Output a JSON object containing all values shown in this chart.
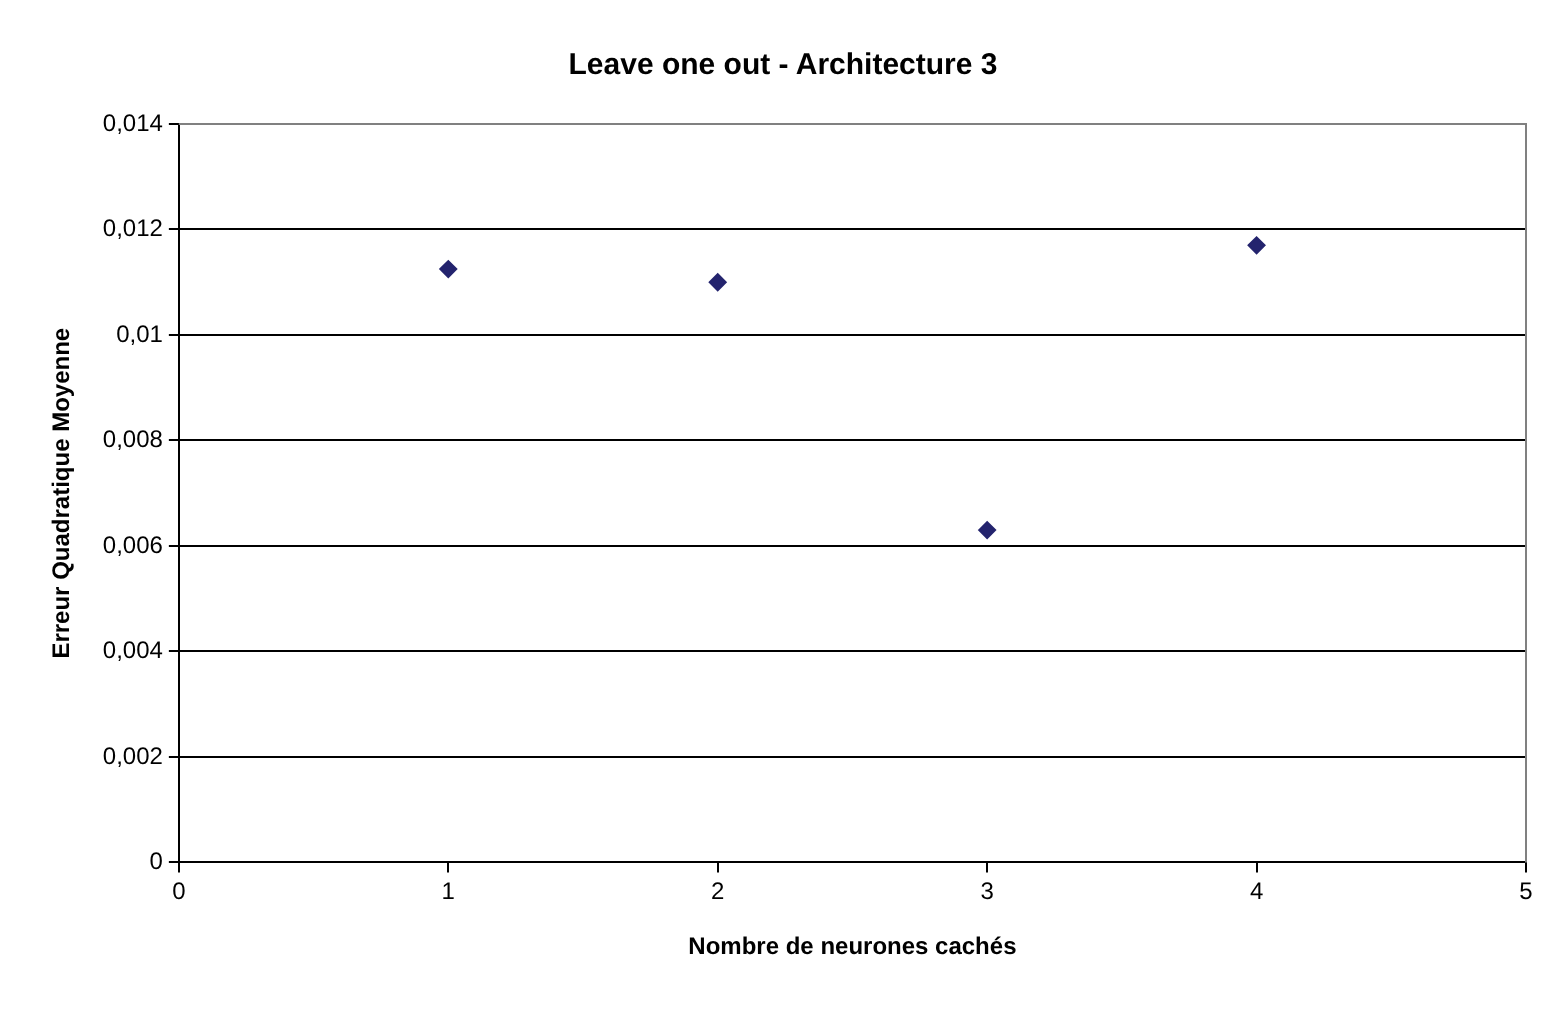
{
  "chart_data": {
    "type": "scatter",
    "title": "Leave one out - Architecture 3",
    "xlabel": "Nombre de neurones cachés",
    "ylabel": "Erreur Quadratique Moyenne",
    "x": [
      1,
      2,
      3,
      4
    ],
    "series": [
      {
        "color": "#24246e",
        "values": [
          0.01125,
          0.011,
          0.0063,
          0.0117
        ]
      }
    ],
    "xlim": [
      0,
      5
    ],
    "xticks": [
      0,
      1,
      2,
      3,
      4,
      5
    ],
    "ylim": [
      0,
      0.014
    ],
    "yticks": [
      {
        "value": 0,
        "label": "0"
      },
      {
        "value": 0.002,
        "label": "0,002"
      },
      {
        "value": 0.004,
        "label": "0,004"
      },
      {
        "value": 0.006,
        "label": "0,006"
      },
      {
        "value": 0.008,
        "label": "0,008"
      },
      {
        "value": 0.01,
        "label": "0,01"
      },
      {
        "value": 0.012,
        "label": "0,012"
      },
      {
        "value": 0.014,
        "label": "0,014"
      }
    ],
    "grid": "y",
    "legend": false,
    "marker": "diamond"
  }
}
